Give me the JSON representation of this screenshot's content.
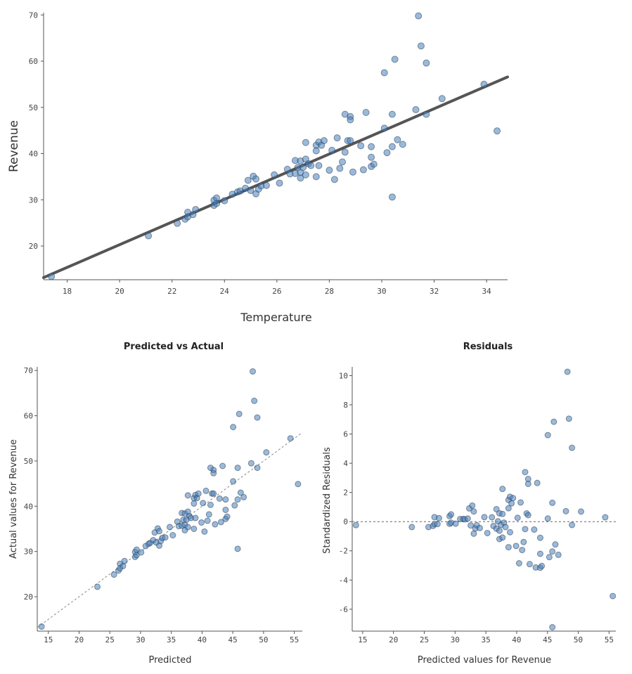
{
  "chart_data": [
    {
      "type": "scatter",
      "title": "",
      "xlabel": "Temperature",
      "ylabel": "Revenue",
      "xlim": [
        17.1,
        34.8
      ],
      "ylim": [
        12.7,
        70.5
      ],
      "xticks": [
        18,
        20,
        22,
        24,
        26,
        28,
        30,
        32,
        34
      ],
      "yticks": [
        20,
        30,
        40,
        50,
        60,
        70
      ],
      "grid": false,
      "regression_line": {
        "slope": 2.453,
        "intercept": -28.78,
        "color": "#555555"
      },
      "point_color": "#4682be",
      "x": [
        17.4,
        21.1,
        22.2,
        22.5,
        22.6,
        22.6,
        22.8,
        22.9,
        23.6,
        23.6,
        23.7,
        23.7,
        24.0,
        24.3,
        24.5,
        24.6,
        24.8,
        24.9,
        25.0,
        25.1,
        25.2,
        25.2,
        25.3,
        25.4,
        25.6,
        25.9,
        26.1,
        26.4,
        26.5,
        26.7,
        26.7,
        26.8,
        26.9,
        26.9,
        26.9,
        27.0,
        27.1,
        27.1,
        27.1,
        27.2,
        27.3,
        27.5,
        27.5,
        27.5,
        27.6,
        27.6,
        27.7,
        27.8,
        28.0,
        28.1,
        28.2,
        28.3,
        28.4,
        28.5,
        28.6,
        28.6,
        28.7,
        28.8,
        28.8,
        28.8,
        28.9,
        29.2,
        29.3,
        29.4,
        29.6,
        29.6,
        29.6,
        29.7,
        30.1,
        30.1,
        30.2,
        30.4,
        30.4,
        30.4,
        30.5,
        30.6,
        30.8,
        31.3,
        31.4,
        31.5,
        31.7,
        31.7,
        32.3,
        33.9,
        34.4
      ],
      "y": [
        13.4,
        22.2,
        24.9,
        25.8,
        27.3,
        26.3,
        26.8,
        27.9,
        29.9,
        28.8,
        30.4,
        29.2,
        29.8,
        31.2,
        31.7,
        31.9,
        32.5,
        34.2,
        32.0,
        35.1,
        34.5,
        31.3,
        32.3,
        33.0,
        33.1,
        35.4,
        33.6,
        36.6,
        35.6,
        38.5,
        35.7,
        37.0,
        38.4,
        35.9,
        34.7,
        37.0,
        38.8,
        35.4,
        42.4,
        37.8,
        37.4,
        41.8,
        40.6,
        35.0,
        42.5,
        37.4,
        41.8,
        42.8,
        36.4,
        40.7,
        34.4,
        43.4,
        36.8,
        38.2,
        48.5,
        40.3,
        42.8,
        42.8,
        48.0,
        47.3,
        36.0,
        41.7,
        36.5,
        48.9,
        41.5,
        39.2,
        37.2,
        37.7,
        57.5,
        45.5,
        40.2,
        48.5,
        41.5,
        30.6,
        60.4,
        43.0,
        42.0,
        49.5,
        69.8,
        63.3,
        59.6,
        48.5,
        51.9,
        55.0,
        44.9
      ]
    },
    {
      "type": "scatter",
      "title": "Predicted vs Actual",
      "xlabel": "Predicted",
      "ylabel": "Actual values for Revenue",
      "xlim": [
        13.2,
        56.3
      ],
      "ylim": [
        12.4,
        70.8
      ],
      "xticks": [
        15,
        20,
        25,
        30,
        35,
        40,
        45,
        50,
        55
      ],
      "yticks": [
        20,
        30,
        40,
        50,
        60,
        70
      ],
      "reference_line": "y = x (dashed)",
      "grid": false
    },
    {
      "type": "scatter",
      "title": "Residuals",
      "xlabel": "Predicted values for Revenue",
      "ylabel": "Standardized Residuals",
      "xlim": [
        13.3,
        56.1
      ],
      "ylim": [
        -7.5,
        10.6
      ],
      "xticks": [
        15,
        20,
        25,
        30,
        35,
        40,
        45,
        50,
        55
      ],
      "yticks": [
        -6,
        -4,
        -2,
        0,
        2,
        4,
        6,
        8,
        10
      ],
      "reference_line": "y = 0 (dashed)",
      "residual_sd": 2.1,
      "grid": false
    }
  ]
}
